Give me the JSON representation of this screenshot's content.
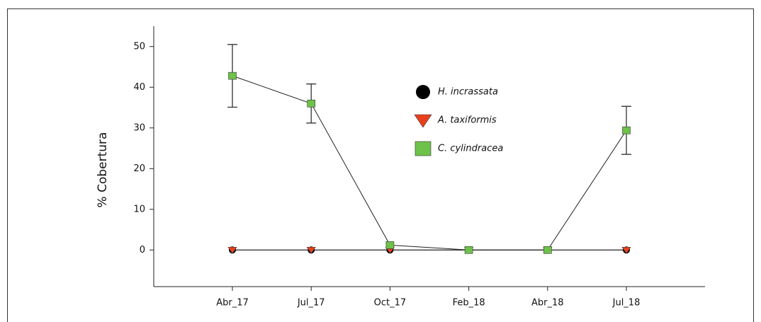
{
  "chart_data": {
    "type": "line",
    "y_label": "% Cobertura",
    "categories": [
      "Abr_17",
      "Jul_17",
      "Oct_17",
      "Feb_18",
      "Abr_18",
      "Jul_18"
    ],
    "series": [
      {
        "name": "H. incrassata",
        "color": "#000000",
        "marker": "circle",
        "values": [
          0,
          0,
          0,
          0,
          0,
          0
        ],
        "errors": [
          null,
          null,
          null,
          null,
          null,
          null
        ]
      },
      {
        "name": "A. taxiformis",
        "color": "#e8401c",
        "marker": "triangle",
        "values": [
          0,
          0,
          0,
          0,
          0,
          0
        ],
        "errors": [
          null,
          null,
          null,
          null,
          null,
          null
        ]
      },
      {
        "name": "C. cylindracea",
        "color": "#6ec24a",
        "marker": "square",
        "values": [
          42.8,
          36,
          1.2,
          0,
          0,
          29.4
        ],
        "errors": [
          7.7,
          4.8,
          null,
          null,
          null,
          5.9
        ]
      }
    ],
    "ylim": [
      -9,
      55
    ],
    "yticks": [
      0,
      10,
      20,
      30,
      40,
      50
    ]
  }
}
